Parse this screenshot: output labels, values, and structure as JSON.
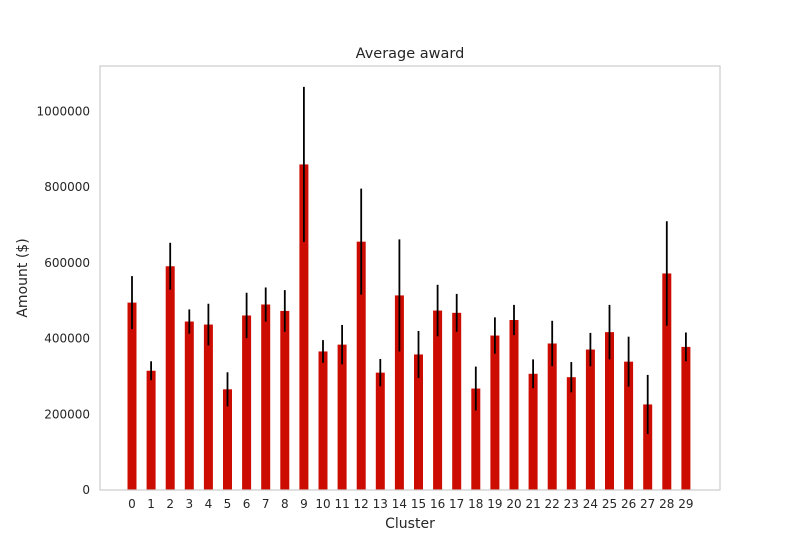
{
  "chart_data": {
    "type": "bar",
    "title": "Average award",
    "xlabel": "Cluster",
    "ylabel": "Amount ($)",
    "categories": [
      "0",
      "1",
      "2",
      "3",
      "4",
      "5",
      "6",
      "7",
      "8",
      "9",
      "10",
      "11",
      "12",
      "13",
      "14",
      "15",
      "16",
      "17",
      "18",
      "19",
      "20",
      "21",
      "22",
      "23",
      "24",
      "25",
      "26",
      "27",
      "28",
      "29"
    ],
    "values": [
      495000,
      315000,
      591000,
      445000,
      437000,
      266000,
      461000,
      490000,
      473000,
      860000,
      366000,
      384000,
      656000,
      310000,
      514000,
      358000,
      474000,
      468000,
      268000,
      408000,
      449000,
      307000,
      387000,
      298000,
      371000,
      417000,
      339000,
      226000,
      572000,
      378000
    ],
    "errors": [
      70000,
      25000,
      62000,
      32000,
      55000,
      45000,
      60000,
      45000,
      55000,
      205000,
      30000,
      52000,
      140000,
      36000,
      148000,
      62000,
      68000,
      50000,
      58000,
      48000,
      40000,
      38000,
      60000,
      40000,
      44000,
      72000,
      66000,
      78000,
      138000,
      38000
    ],
    "yticks": [
      0,
      200000,
      400000,
      600000,
      800000,
      1000000
    ],
    "ylim": [
      0,
      1120000
    ],
    "grid": false,
    "bar_color": "#cc0c00",
    "error_color": "#000000"
  }
}
